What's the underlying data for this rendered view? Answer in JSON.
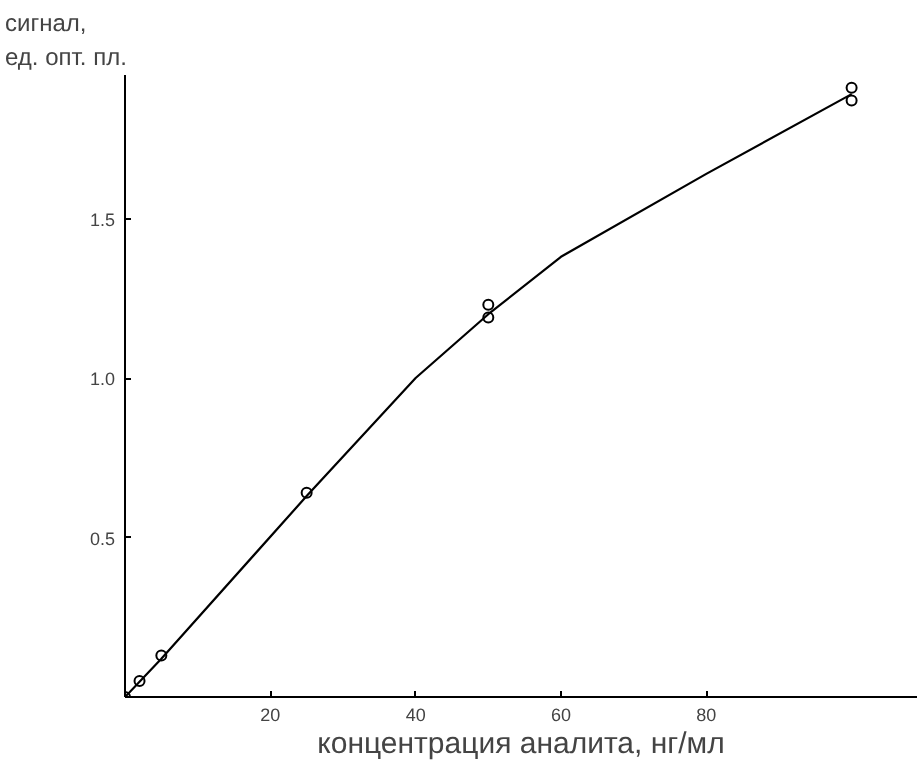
{
  "chart_data": {
    "type": "scatter",
    "xlabel": "концентрация аналита, нг/мл",
    "ylabel": "сигнал,\nед. опт. пл.",
    "xlim": [
      0,
      109
    ],
    "ylim": [
      0,
      1.95
    ],
    "xticks": [
      20,
      40,
      60,
      80
    ],
    "yticks": [
      {
        "value": 0.5,
        "label": "0.5"
      },
      {
        "value": 1,
        "label": "1.0"
      },
      {
        "value": 1.5,
        "label": "1.5"
      }
    ],
    "grid": false,
    "marker": "circle",
    "series": [
      {
        "type": "scatter",
        "color": "#000000",
        "x": [
          0,
          2,
          5,
          25,
          50,
          50,
          100,
          100
        ],
        "values": [
          0,
          0.05,
          0.13,
          0.64,
          1.23,
          1.19,
          1.91,
          1.87
        ]
      },
      {
        "type": "line",
        "color": "#000000",
        "line_style": "solid",
        "marker": "none",
        "x": [
          0,
          5,
          25,
          40,
          50,
          60,
          80,
          100
        ],
        "values": [
          0,
          0.12,
          0.63,
          1.0,
          1.2,
          1.38,
          1.64,
          1.89
        ]
      }
    ]
  }
}
